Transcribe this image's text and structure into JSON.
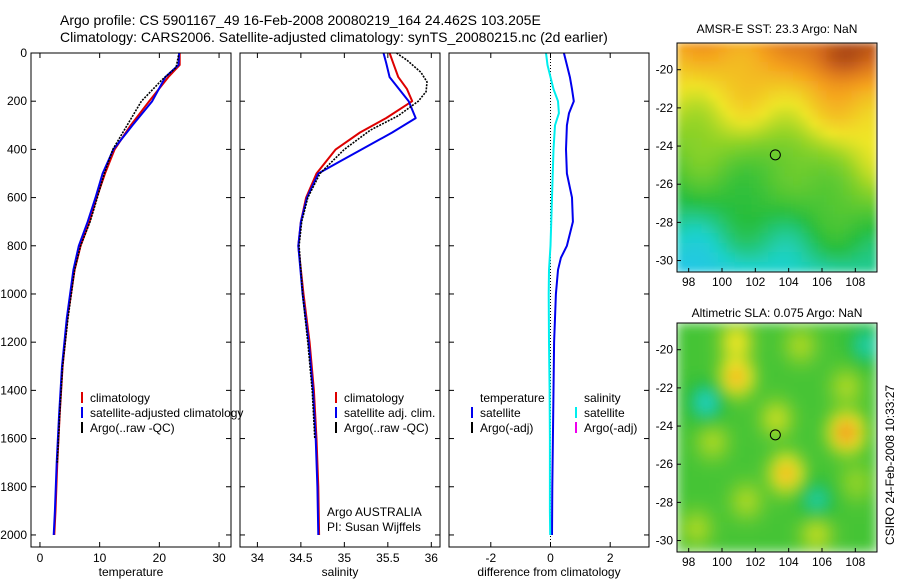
{
  "header": {
    "line1": "Argo profile: CS 5901167_49 16-Feb-2008 20080219_164 24.462S 103.205E",
    "line2": "Climatology: CARS2006. Satellite-adjusted climatology: synTS_20080215.nc (2d earlier)"
  },
  "side_label": "CSIRO 24-Feb-2008 10:33:27",
  "colors": {
    "climatology": "#dd0000",
    "satellite": "#0000ee",
    "argo": "#000000",
    "salinity_satellite": "#00eeee",
    "salinity_argo": "#ee00ee",
    "frame": "#000000"
  },
  "chart_data": [
    {
      "id": "temperature",
      "type": "line",
      "xlabel": "temperature",
      "ylabel": "",
      "xlim": [
        -1.5,
        32
      ],
      "ylim": [
        2050,
        0
      ],
      "xticks": [
        0,
        10,
        20,
        30
      ],
      "yticks": [
        0,
        200,
        400,
        600,
        800,
        1000,
        1200,
        1400,
        1600,
        1800,
        2000
      ],
      "legend": {
        "placement": "lower-right",
        "entries": [
          "climatology",
          "satellite-adjusted climatology",
          "Argo(..raw -QC)"
        ]
      },
      "series": [
        {
          "name": "climatology",
          "x": [
            23.4,
            23.4,
            21.5,
            18.3,
            15.2,
            12.5,
            10.9,
            9.5,
            8.3,
            6.8,
            5.8,
            4.6,
            3.8,
            3.3,
            2.9,
            2.6,
            2.4
          ],
          "y": [
            0,
            50,
            100,
            200,
            300,
            400,
            500,
            600,
            700,
            800,
            900,
            1100,
            1300,
            1500,
            1700,
            1900,
            2000
          ]
        },
        {
          "name": "satellite-adjusted climatology",
          "x": [
            23.3,
            23.2,
            21.0,
            18.8,
            15.5,
            12.3,
            10.5,
            9.3,
            8.0,
            6.5,
            5.6,
            4.5,
            3.7,
            3.2,
            2.8,
            2.5,
            2.3
          ],
          "y": [
            0,
            50,
            100,
            200,
            300,
            400,
            500,
            600,
            700,
            800,
            900,
            1100,
            1300,
            1500,
            1700,
            1900,
            2000
          ]
        },
        {
          "name": "Argo(..raw -QC)",
          "x": [
            23.2,
            22.8,
            20.5,
            17.0,
            14.6,
            12.2,
            10.8,
            9.6,
            8.4,
            6.8,
            5.8,
            4.7,
            3.8,
            3.3,
            2.9
          ],
          "y": [
            10,
            60,
            110,
            200,
            300,
            400,
            500,
            600,
            700,
            800,
            900,
            1100,
            1300,
            1500,
            1700
          ]
        }
      ]
    },
    {
      "id": "salinity",
      "type": "line",
      "xlabel": "salinity",
      "ylabel": "",
      "xlim": [
        33.8,
        36.1
      ],
      "ylim": [
        2050,
        0
      ],
      "xticks": [
        34,
        34.5,
        35,
        35.5,
        36
      ],
      "yticks": [
        0,
        200,
        400,
        600,
        800,
        1000,
        1200,
        1400,
        1600,
        1800,
        2000
      ],
      "legend": {
        "placement": "lower-right",
        "entries": [
          "climatology",
          "satellite adj. clim.",
          "Argo(..raw -QC)"
        ]
      },
      "annotation": {
        "line1": "Argo AUSTRALIA",
        "line2": "PI: Susan Wijffels"
      },
      "series": [
        {
          "name": "climatology",
          "x": [
            35.52,
            35.56,
            35.62,
            35.72,
            35.78,
            35.48,
            35.18,
            34.9,
            34.68,
            34.56,
            34.5,
            34.47,
            34.53,
            34.6,
            34.65,
            34.68,
            34.7,
            34.71
          ],
          "y": [
            0,
            40,
            100,
            150,
            200,
            270,
            330,
            400,
            500,
            600,
            700,
            800,
            1000,
            1200,
            1400,
            1600,
            1800,
            2000
          ]
        },
        {
          "name": "satellite adj. clim.",
          "x": [
            35.45,
            35.48,
            35.52,
            35.63,
            35.74,
            35.82,
            35.55,
            35.2,
            34.95,
            34.7,
            34.57,
            34.5,
            34.47,
            34.52,
            34.59,
            34.64,
            34.67,
            34.69,
            34.7
          ],
          "y": [
            0,
            40,
            100,
            150,
            200,
            270,
            330,
            400,
            450,
            500,
            600,
            700,
            800,
            1000,
            1200,
            1400,
            1600,
            1800,
            2000
          ]
        },
        {
          "name": "Argo(..raw -QC)",
          "x": [
            35.6,
            35.72,
            35.88,
            35.95,
            35.94,
            35.85,
            35.62,
            35.3,
            35.0,
            34.72,
            34.58,
            34.51,
            34.48,
            34.52,
            34.58,
            34.63,
            34.66
          ],
          "y": [
            0,
            30,
            80,
            120,
            160,
            200,
            260,
            320,
            400,
            500,
            600,
            700,
            800,
            1000,
            1200,
            1400,
            1600
          ]
        }
      ]
    },
    {
      "id": "difference",
      "type": "line",
      "xlabel": "difference from climatology",
      "ylabel": "",
      "xlim": [
        -3.4,
        3.3
      ],
      "ylim": [
        2050,
        0
      ],
      "xticks": [
        -2,
        0,
        2
      ],
      "yticks": [
        0,
        200,
        400,
        600,
        800,
        1000,
        1200,
        1400,
        1600,
        1800,
        2000
      ],
      "legend": {
        "placement": "lower",
        "groups": [
          {
            "title": "temperature",
            "entries": [
              "satellite",
              "Argo(-adj)"
            ]
          },
          {
            "title": "salinity",
            "entries": [
              "satellite",
              "Argo(-adj)"
            ]
          }
        ]
      },
      "series": [
        {
          "name": "temperature satellite",
          "x": [
            0.45,
            0.55,
            0.65,
            0.72,
            0.78,
            0.62,
            0.55,
            0.52,
            0.55,
            0.72,
            0.75,
            0.55,
            0.35,
            0.25,
            0.18,
            0.12,
            0.1,
            0.08,
            0.06,
            0.05
          ],
          "y": [
            0,
            50,
            100,
            150,
            200,
            250,
            300,
            400,
            500,
            600,
            700,
            800,
            850,
            900,
            1000,
            1200,
            1400,
            1600,
            1800,
            2000
          ]
        },
        {
          "name": "salinity satellite",
          "x": [
            -0.15,
            -0.1,
            0.0,
            0.1,
            0.25,
            0.28,
            0.15,
            0.1,
            0.05,
            0.0,
            -0.05,
            -0.06,
            -0.05,
            -0.03,
            -0.02,
            -0.02,
            -0.02,
            -0.01
          ],
          "y": [
            0,
            50,
            100,
            150,
            200,
            250,
            300,
            400,
            600,
            800,
            900,
            1000,
            1200,
            1400,
            1600,
            1800,
            1900,
            2000
          ]
        }
      ]
    },
    {
      "id": "sst-map",
      "type": "heatmap",
      "title": "AMSR-E SST: 23.3 Argo: NaN",
      "xlim": [
        97.3,
        109.3
      ],
      "ylim": [
        -30.6,
        -18.6
      ],
      "xticks": [
        98,
        100,
        102,
        104,
        106,
        108
      ],
      "yticks": [
        -20,
        -22,
        -24,
        -26,
        -28,
        -30
      ],
      "marker": {
        "lon": 103.2,
        "lat": -24.46
      }
    },
    {
      "id": "sla-map",
      "type": "heatmap",
      "title": "Altimetric SLA: 0.075 Argo: NaN",
      "xlim": [
        97.3,
        109.3
      ],
      "ylim": [
        -30.6,
        -18.6
      ],
      "xticks": [
        98,
        100,
        102,
        104,
        106,
        108
      ],
      "yticks": [
        -20,
        -22,
        -24,
        -26,
        -28,
        -30
      ],
      "marker": {
        "lon": 103.2,
        "lat": -24.46
      }
    }
  ]
}
